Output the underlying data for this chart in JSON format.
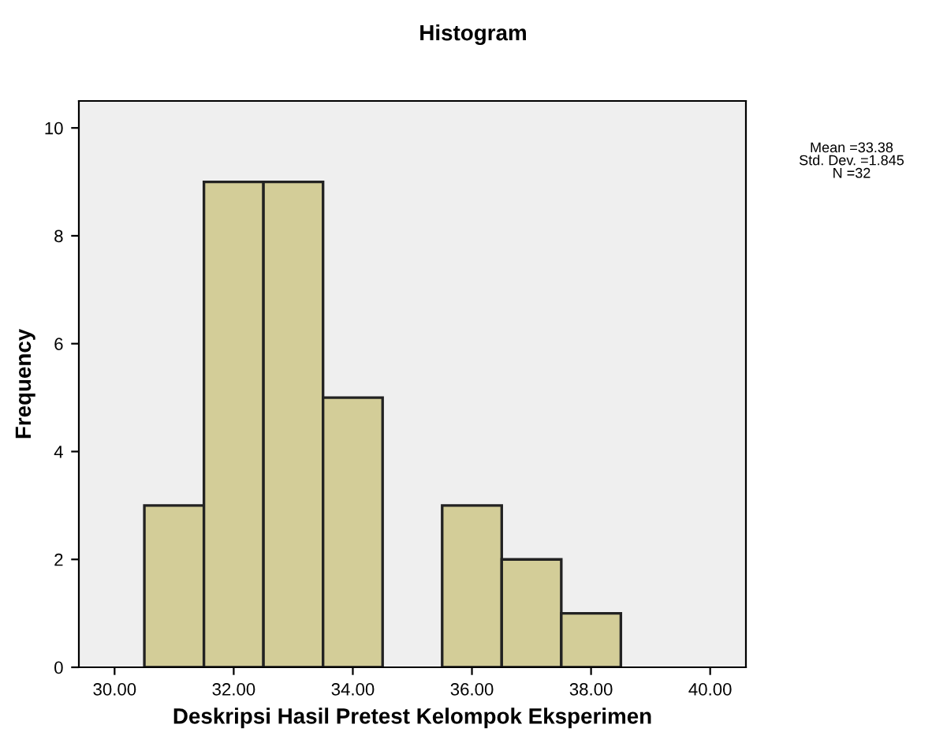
{
  "chart_data": {
    "type": "histogram",
    "title": "Histogram",
    "xlabel": "Deskripsi Hasil Pretest Kelompok Eksperimen",
    "ylabel": "Frequency",
    "bins": [
      30.5,
      31.5,
      32.5,
      33.5,
      34.5,
      35.5,
      36.5,
      37.5,
      38.5
    ],
    "values": [
      3,
      9,
      9,
      5,
      0,
      3,
      2,
      1
    ],
    "color": "#d3cd98",
    "xlim": [
      29.4,
      40.6
    ],
    "xticks": [
      {
        "value": 30,
        "label": "30.00"
      },
      {
        "value": 32,
        "label": "32.00"
      },
      {
        "value": 34,
        "label": "34.00"
      },
      {
        "value": 36,
        "label": "36.00"
      },
      {
        "value": 38,
        "label": "38.00"
      },
      {
        "value": 40,
        "label": "40.00"
      }
    ],
    "ylim": [
      0,
      10.5
    ],
    "yticks": [
      0,
      2,
      4,
      6,
      8,
      10
    ],
    "grid": false,
    "legend": false,
    "annotations": [
      "Mean =33.38\nStd. Dev. =1.845\nN =32"
    ]
  }
}
